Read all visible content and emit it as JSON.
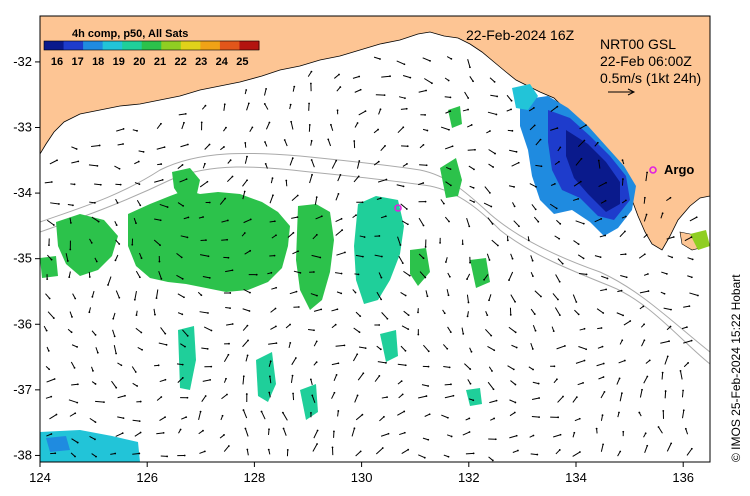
{
  "legend": {
    "title": "4h comp, p50, All Sats",
    "ticks": [
      "16",
      "17",
      "18",
      "19",
      "20",
      "21",
      "22",
      "23",
      "24",
      "25"
    ],
    "colors": [
      "#0a1a8c",
      "#1e3ccc",
      "#1f8be0",
      "#22c4d8",
      "#1fcf9a",
      "#2cc24b",
      "#8fce22",
      "#e0d21a",
      "#f0a216",
      "#e2561a",
      "#b3140f"
    ]
  },
  "date_label": "22-Feb-2024 16Z",
  "current_info": {
    "line1": "NRT00 GSL",
    "line2": "22-Feb 06:00Z",
    "line3": "0.5m/s (1kt 24h)"
  },
  "argo": {
    "label": "Argo",
    "color": "#e020e0"
  },
  "credit": "© IMOS 25-Feb-2024 15:22 Hobart",
  "x_axis": {
    "ticks": [
      "124",
      "126",
      "128",
      "130",
      "132",
      "134",
      "136"
    ],
    "range": [
      124,
      136.5
    ]
  },
  "y_axis": {
    "ticks": [
      "-32",
      "-33",
      "-34",
      "-35",
      "-36",
      "-37",
      "-38"
    ],
    "range": [
      -38.1,
      -31.3
    ]
  },
  "colors": {
    "land": "#fdc594",
    "ocean": "#ffffff",
    "bathymetry": "#aaaaaa",
    "vector": "#000000"
  }
}
